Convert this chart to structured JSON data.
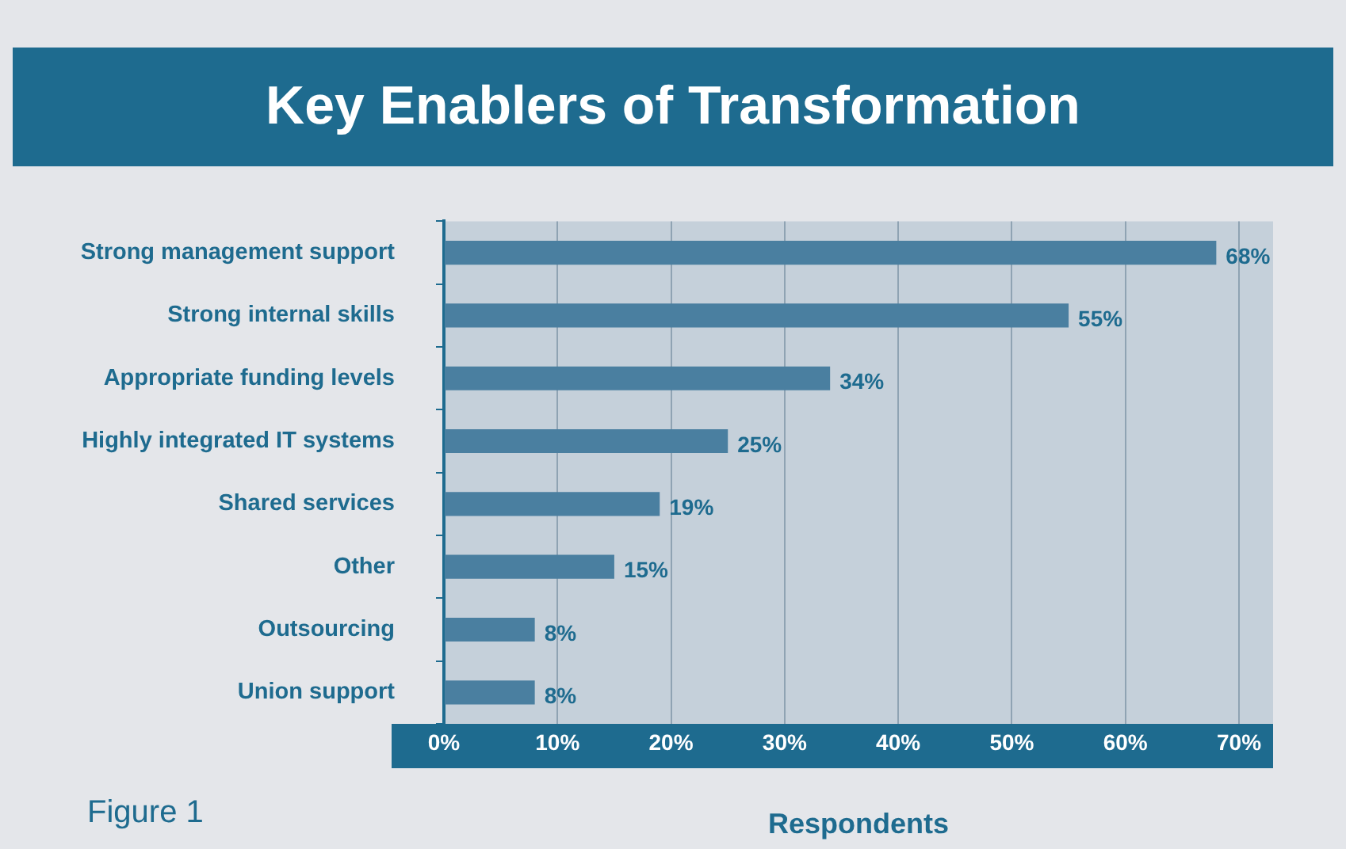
{
  "chart_data": {
    "type": "bar",
    "orientation": "horizontal",
    "title": "Key Enablers of Transformation",
    "xlabel": "Respondents",
    "categories": [
      "Strong management support",
      "Strong internal skills",
      "Appropriate funding levels",
      "Highly integrated IT systems",
      "Shared services",
      "Other",
      "Outsourcing",
      "Union support"
    ],
    "values": [
      68,
      55,
      34,
      25,
      19,
      15,
      8,
      8
    ],
    "value_labels": [
      "68%",
      "55%",
      "34%",
      "25%",
      "19%",
      "15%",
      "8%",
      "8%"
    ],
    "color": "#4a7fa0",
    "xlim": [
      0,
      73
    ],
    "xticks": [
      {
        "value": 0,
        "label": "0%"
      },
      {
        "value": 10,
        "label": "10%"
      },
      {
        "value": 20,
        "label": "20%"
      },
      {
        "value": 30,
        "label": "30%"
      },
      {
        "value": 40,
        "label": "40%"
      },
      {
        "value": 50,
        "label": "50%"
      },
      {
        "value": 60,
        "label": "60%"
      },
      {
        "value": 70,
        "label": "70%"
      }
    ],
    "grid": "x",
    "legend": false,
    "annotations": [
      "Figure 1"
    ]
  }
}
